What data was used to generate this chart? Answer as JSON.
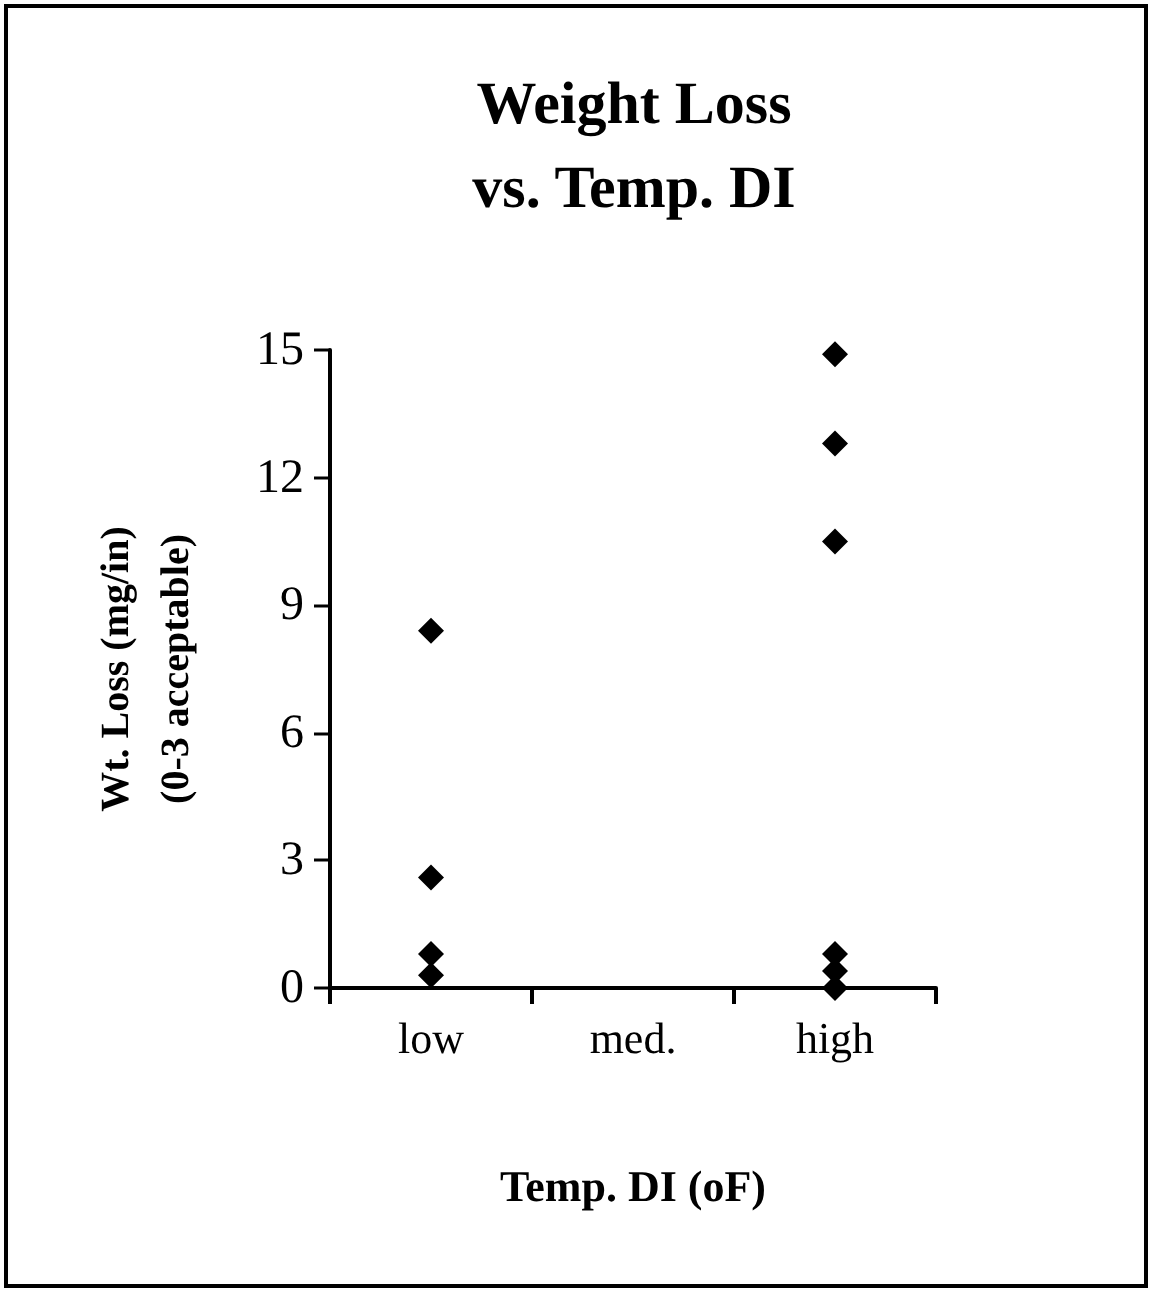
{
  "chart_data": {
    "type": "scatter",
    "title": "Weight Loss\nvs. Temp. DI",
    "xlabel": "Temp. DI (oF)",
    "ylabel": "Wt. Loss (mg/in)\n(0-3 acceptable)",
    "categories": [
      "low",
      "med.",
      "high"
    ],
    "series": [
      {
        "color": "#000000",
        "values": [
          2.6,
          null,
          0.8
        ]
      },
      {
        "color": "#000000",
        "values": [
          0.8,
          null,
          14.9
        ]
      },
      {
        "color": "#000000",
        "values": [
          8.4,
          null,
          12.8
        ]
      },
      {
        "color": "#000000",
        "values": [
          0.3,
          null,
          10.5
        ]
      },
      {
        "color": "#000000",
        "values": [
          null,
          null,
          0.4
        ]
      },
      {
        "color": "#000000",
        "values": [
          null,
          null,
          0
        ]
      }
    ],
    "marker": "diamond",
    "ylim": [
      0,
      15
    ],
    "yticks": [
      0,
      3,
      6,
      9,
      12,
      15
    ],
    "grid": false
  }
}
